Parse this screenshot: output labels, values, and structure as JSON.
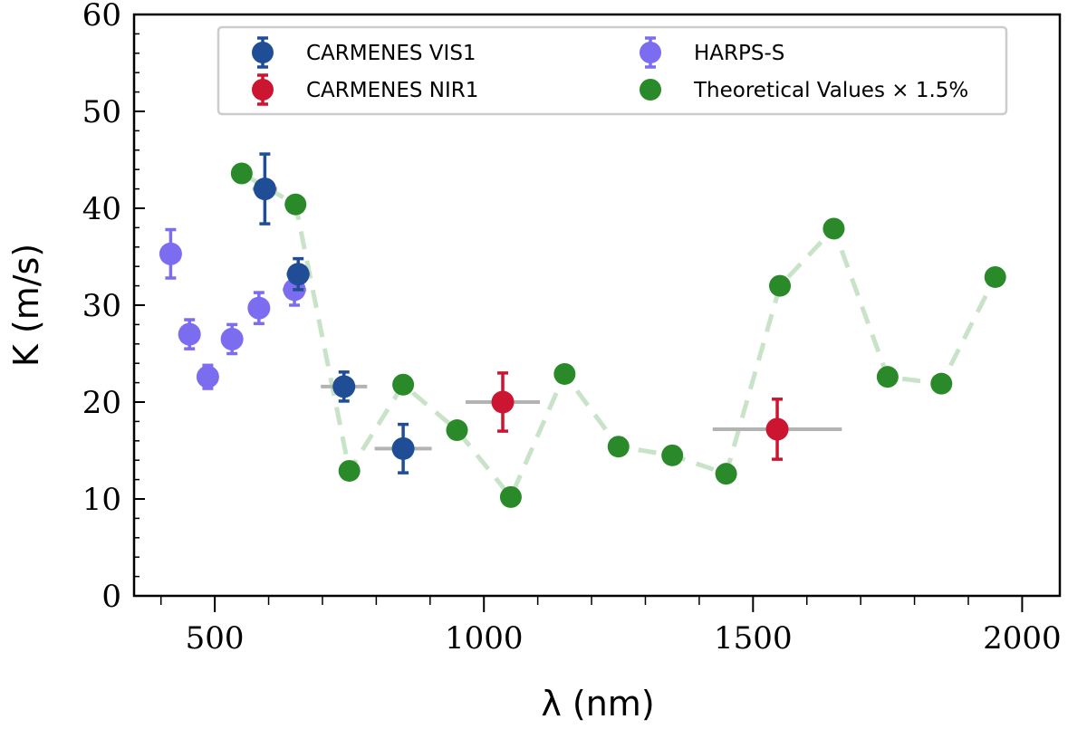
{
  "chart_data": {
    "type": "scatter",
    "xlabel": "λ (nm)",
    "ylabel": "K (m/s)",
    "xlim": [
      350,
      2070
    ],
    "ylim": [
      0,
      60
    ],
    "xticks": [
      500,
      1000,
      1500,
      2000
    ],
    "yticks": [
      0,
      10,
      20,
      30,
      40,
      50,
      60
    ],
    "x_minor_step": 100,
    "y_minor_step": 2,
    "grid": false,
    "legend_placement": "top-center",
    "series": [
      {
        "name": "CARMENES VIS1",
        "color": "#1f4e96",
        "kind": "errorbar",
        "points": [
          {
            "x": 593,
            "y": 42.0,
            "yerr": 3.6,
            "xmin": 570,
            "xmax": 616
          },
          {
            "x": 655,
            "y": 33.2,
            "yerr": 1.6,
            "xmin": 633,
            "xmax": 677
          },
          {
            "x": 740,
            "y": 21.6,
            "yerr": 1.5,
            "xmin": 697,
            "xmax": 783
          },
          {
            "x": 850,
            "y": 15.2,
            "yerr": 2.5,
            "xmin": 797,
            "xmax": 903
          }
        ]
      },
      {
        "name": "CARMENES NIR1",
        "color": "#cc1530",
        "kind": "errorbar",
        "points": [
          {
            "x": 1035,
            "y": 20.0,
            "yerr": 3.0,
            "xmin": 966,
            "xmax": 1104
          },
          {
            "x": 1545,
            "y": 17.2,
            "yerr": 3.1,
            "xmin": 1425,
            "xmax": 1665
          }
        ]
      },
      {
        "name": "HARPS-S",
        "color": "#7b6cf0",
        "kind": "errorbar",
        "points": [
          {
            "x": 418,
            "y": 35.3,
            "yerr": 2.5
          },
          {
            "x": 453,
            "y": 27.0,
            "yerr": 1.5
          },
          {
            "x": 487,
            "y": 22.6,
            "yerr": 1.2
          },
          {
            "x": 532,
            "y": 26.5,
            "yerr": 1.5
          },
          {
            "x": 582,
            "y": 29.7,
            "yerr": 1.6
          },
          {
            "x": 648,
            "y": 31.6,
            "yerr": 1.6,
            "xmin": 626,
            "xmax": 670
          }
        ]
      },
      {
        "name": "Theoretical Values × 1.5%",
        "color": "#2a8a2a",
        "line_color": "#c9e3c9",
        "kind": "line-markers",
        "points": [
          {
            "x": 550,
            "y": 43.6
          },
          {
            "x": 650,
            "y": 40.4
          },
          {
            "x": 750,
            "y": 12.9
          },
          {
            "x": 850,
            "y": 21.8
          },
          {
            "x": 950,
            "y": 17.1
          },
          {
            "x": 1050,
            "y": 10.2
          },
          {
            "x": 1150,
            "y": 22.9
          },
          {
            "x": 1250,
            "y": 15.4
          },
          {
            "x": 1350,
            "y": 14.5
          },
          {
            "x": 1450,
            "y": 12.6
          },
          {
            "x": 1550,
            "y": 32.0
          },
          {
            "x": 1650,
            "y": 37.9
          },
          {
            "x": 1750,
            "y": 22.6
          },
          {
            "x": 1850,
            "y": 21.9
          },
          {
            "x": 1950,
            "y": 32.9
          }
        ]
      }
    ],
    "legend": [
      {
        "label": "CARMENES VIS1",
        "series": 0
      },
      {
        "label": "HARPS-S",
        "series": 2
      },
      {
        "label": "CARMENES NIR1",
        "series": 1
      },
      {
        "label": "Theoretical Values × 1.5%",
        "series": 3
      }
    ]
  }
}
